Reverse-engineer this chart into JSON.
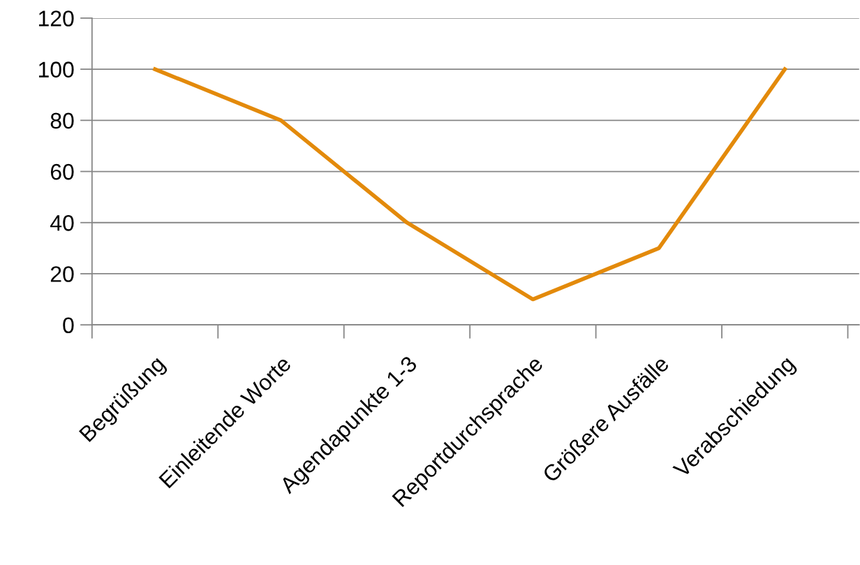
{
  "chart_data": {
    "type": "line",
    "categories": [
      "Begrüßung",
      "Einleitende Worte",
      "Agendapunkte 1-3",
      "Reportdurchsprache",
      "Größere Ausfälle",
      "Verabschiedung"
    ],
    "series": [
      {
        "color": "#e38a0b",
        "values": [
          100,
          80,
          40,
          10,
          30,
          100
        ]
      }
    ],
    "ylim": [
      0,
      120
    ],
    "yticks": [
      0,
      20,
      40,
      60,
      80,
      100,
      120
    ],
    "grid": "y",
    "legend": false,
    "marker": "none",
    "line_style": "solid"
  }
}
